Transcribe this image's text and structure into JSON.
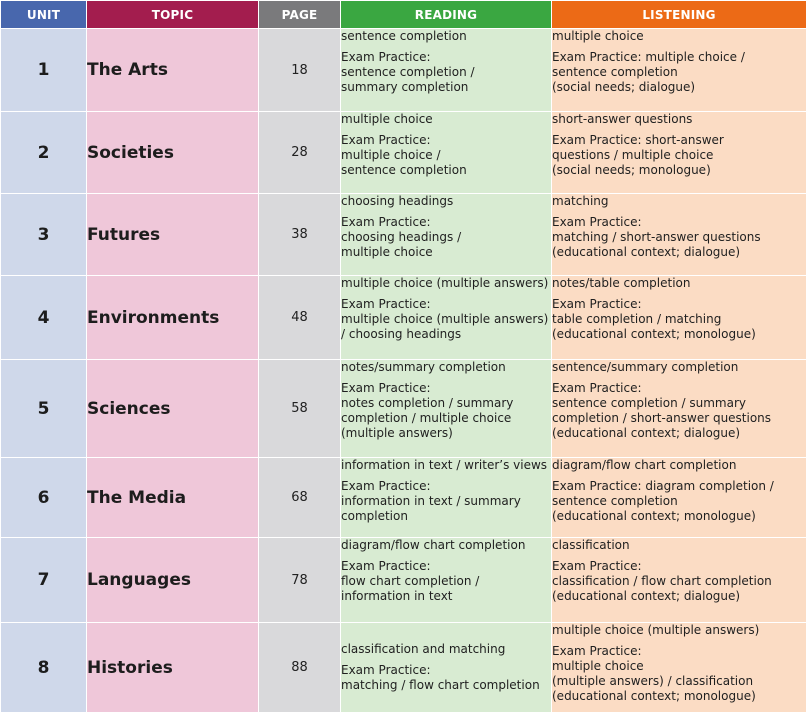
{
  "headers": {
    "unit": "UNIT",
    "topic": "TOPIC",
    "page": "PAGE",
    "reading": "READING",
    "listening": "LISTENING"
  },
  "colors": {
    "unit_header": "#4867ad",
    "topic_header": "#a31d4e",
    "page_header": "#7a7a7c",
    "reading_header": "#3aa741",
    "listening_header": "#ec6a16",
    "unit_cell": "#cfd8ea",
    "topic_cell": "#efc7d9",
    "page_cell": "#d9d9db",
    "reading_cell": "#d8ebd2",
    "listening_cell": "#fbdcc4"
  },
  "rows": [
    {
      "unit": "1",
      "topic": "The Arts",
      "page": "18",
      "reading": {
        "type": "sentence completion",
        "practice": "Exam Practice:\nsentence completion /\nsummary completion"
      },
      "listening": {
        "type": "multiple choice",
        "practice": "Exam Practice: multiple choice /\nsentence completion\n(social needs; dialogue)"
      }
    },
    {
      "unit": "2",
      "topic": "Societies",
      "page": "28",
      "reading": {
        "type": "multiple choice",
        "practice": "Exam Practice:\nmultiple choice /\nsentence completion"
      },
      "listening": {
        "type": "short-answer questions",
        "practice": "Exam Practice: short-answer\nquestions / multiple choice\n(social needs; monologue)"
      }
    },
    {
      "unit": "3",
      "topic": "Futures",
      "page": "38",
      "reading": {
        "type": "choosing headings",
        "practice": "Exam Practice:\nchoosing headings /\nmultiple choice"
      },
      "listening": {
        "type": "matching",
        "practice": "Exam Practice:\nmatching / short-answer questions\n(educational context; dialogue)"
      }
    },
    {
      "unit": "4",
      "topic": "Environments",
      "page": "48",
      "reading": {
        "type": "multiple choice (multiple answers)",
        "practice": "Exam Practice:\nmultiple choice (multiple answers)\n/ choosing headings"
      },
      "listening": {
        "type": "notes/table completion",
        "practice": "Exam Practice:\ntable completion / matching\n(educational context; monologue)"
      }
    },
    {
      "unit": "5",
      "topic": "Sciences",
      "page": "58",
      "reading": {
        "type": "notes/summary completion",
        "practice": "Exam Practice:\nnotes completion / summary\ncompletion / multiple choice\n(multiple answers)"
      },
      "listening": {
        "type": "sentence/summary completion",
        "practice": "Exam Practice:\nsentence completion / summary\ncompletion / short-answer questions\n(educational context; dialogue)"
      }
    },
    {
      "unit": "6",
      "topic": "The Media",
      "page": "68",
      "reading": {
        "type": "information in text / writer’s views",
        "practice": "Exam Practice:\ninformation in text / summary\ncompletion"
      },
      "listening": {
        "type": "diagram/flow chart completion",
        "practice": "Exam Practice: diagram completion /\nsentence completion\n(educational context; monologue)"
      }
    },
    {
      "unit": "7",
      "topic": "Languages",
      "page": "78",
      "reading": {
        "type": "diagram/flow chart completion",
        "practice": "Exam Practice:\nflow chart completion /\ninformation in text"
      },
      "listening": {
        "type": "classification",
        "practice": "Exam Practice:\nclassification / flow chart completion\n(educational context; dialogue)"
      }
    },
    {
      "unit": "8",
      "topic": "Histories",
      "page": "88",
      "reading": {
        "type": "classification and matching",
        "practice": "Exam Practice:\nmatching / flow chart completion"
      },
      "listening": {
        "type": "multiple choice (multiple answers)",
        "practice": "Exam Practice:\nmultiple choice\n(multiple answers) / classification\n(educational context; monologue)"
      }
    }
  ]
}
